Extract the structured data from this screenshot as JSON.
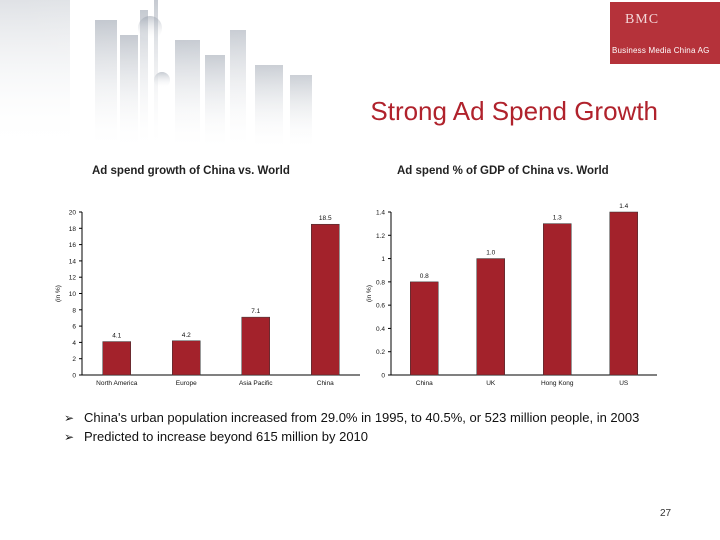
{
  "slide": {
    "title": "Strong Ad Spend Growth",
    "page_number": "27",
    "logo": {
      "mark": "BMC",
      "name": "Business Media China AG"
    }
  },
  "bullets": [
    "China's urban population increased from 29.0% in 1995, to 40.5%, or 523 million people, in 2003",
    "Predicted to increase beyond 615 million by 2010"
  ],
  "colors": {
    "bar": "#a3222b",
    "title": "#b0222c",
    "logo": "#b5323a"
  },
  "chart_data": [
    {
      "type": "bar",
      "title": "Ad spend growth of China vs. World",
      "ylabel": "(in %)",
      "categories": [
        "North America",
        "Europe",
        "Asia Pacific",
        "China"
      ],
      "values": [
        4.1,
        4.2,
        7.1,
        18.5
      ],
      "value_labels": [
        "4.1",
        "4.2",
        "7.1",
        "18.5"
      ],
      "ylim": [
        0,
        20
      ],
      "yticks": [
        0,
        2,
        4,
        6,
        8,
        10,
        12,
        14,
        16,
        18,
        20
      ],
      "grid": false
    },
    {
      "type": "bar",
      "title": "Ad spend % of GDP of China vs. World",
      "ylabel": "(in %)",
      "categories": [
        "China",
        "UK",
        "Hong Kong",
        "US"
      ],
      "values": [
        0.8,
        1.0,
        1.3,
        1.4
      ],
      "value_labels": [
        "0.8",
        "1.0",
        "1.3",
        "1.4"
      ],
      "ylim": [
        0,
        1.4
      ],
      "yticks": [
        0,
        0.2,
        0.4,
        0.6,
        0.8,
        1,
        1.2,
        1.4
      ],
      "grid": false
    }
  ]
}
